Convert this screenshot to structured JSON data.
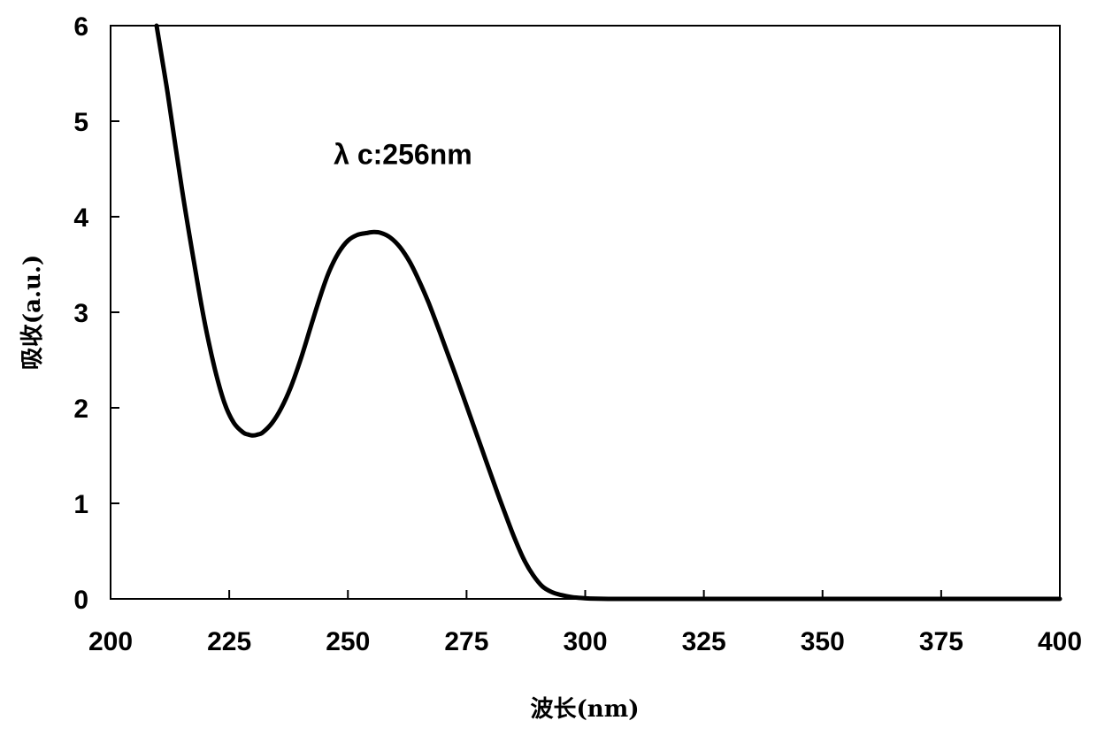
{
  "chart_data": {
    "type": "line",
    "title": "",
    "xlabel": "波长(nm)",
    "ylabel": "吸收(a.u.)",
    "xlim": [
      200,
      400
    ],
    "ylim": [
      0,
      6
    ],
    "xticks": [
      200,
      225,
      250,
      275,
      300,
      325,
      350,
      375,
      400
    ],
    "yticks": [
      0,
      1,
      2,
      3,
      4,
      5,
      6
    ],
    "grid": false,
    "legend": "none",
    "annotations": [
      {
        "text": "λ c:256nm",
        "x": 247,
        "y": 4.55
      }
    ],
    "series": [
      {
        "color": "#000000",
        "x": [
          209.7,
          212,
          215,
          218,
          220,
          222,
          224,
          226,
          228,
          229,
          230,
          231,
          232,
          234,
          236,
          238,
          240,
          242,
          244,
          246,
          248,
          250,
          252,
          254,
          255.5,
          257,
          259,
          261,
          263,
          265,
          267,
          269,
          271,
          273,
          275,
          277,
          279,
          281,
          283,
          285,
          287,
          289,
          291,
          293,
          295,
          297,
          299,
          301,
          305,
          310,
          320,
          340,
          360,
          380,
          400
        ],
        "y": [
          6.0,
          5.3,
          4.3,
          3.4,
          2.85,
          2.4,
          2.05,
          1.84,
          1.74,
          1.72,
          1.71,
          1.72,
          1.74,
          1.84,
          2.0,
          2.22,
          2.5,
          2.82,
          3.14,
          3.42,
          3.62,
          3.75,
          3.81,
          3.83,
          3.84,
          3.83,
          3.78,
          3.68,
          3.53,
          3.33,
          3.1,
          2.84,
          2.57,
          2.3,
          2.02,
          1.74,
          1.46,
          1.18,
          0.91,
          0.65,
          0.42,
          0.25,
          0.13,
          0.07,
          0.04,
          0.02,
          0.01,
          0.004,
          0.0,
          0.0,
          0.0,
          0.0,
          0.0,
          0.0,
          0.0
        ]
      }
    ]
  }
}
